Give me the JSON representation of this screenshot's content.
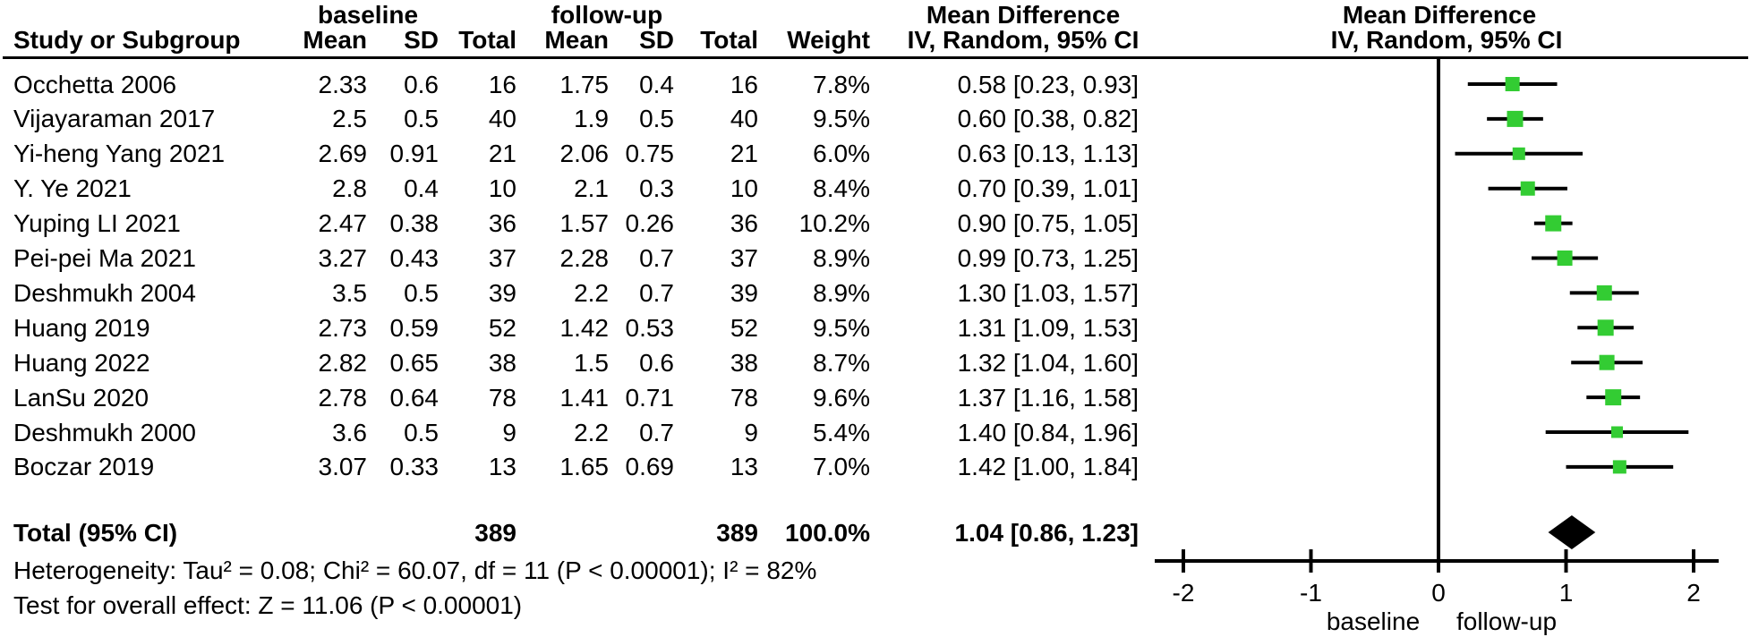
{
  "header": {
    "group1_label": "baseline",
    "group2_label": "follow-up",
    "study_col": "Study or Subgroup",
    "mean_col": "Mean",
    "sd_col": "SD",
    "total_col": "Total",
    "weight_col": "Weight",
    "md_title": "Mean Difference",
    "md_subtitle": "IV, Random, 95% CI"
  },
  "table": {
    "rows": [
      {
        "study": "Occhetta 2006",
        "mean1": "2.33",
        "sd1": "0.6",
        "total1": "16",
        "mean2": "1.75",
        "sd2": "0.4",
        "total2": "16",
        "weight": "7.8%",
        "ci": "0.58 [0.23, 0.93]"
      },
      {
        "study": "Vijayaraman 2017",
        "mean1": "2.5",
        "sd1": "0.5",
        "total1": "40",
        "mean2": "1.9",
        "sd2": "0.5",
        "total2": "40",
        "weight": "9.5%",
        "ci": "0.60 [0.38, 0.82]"
      },
      {
        "study": "Yi-heng Yang 2021",
        "mean1": "2.69",
        "sd1": "0.91",
        "total1": "21",
        "mean2": "2.06",
        "sd2": "0.75",
        "total2": "21",
        "weight": "6.0%",
        "ci": "0.63 [0.13, 1.13]"
      },
      {
        "study": "Y. Ye 2021",
        "mean1": "2.8",
        "sd1": "0.4",
        "total1": "10",
        "mean2": "2.1",
        "sd2": "0.3",
        "total2": "10",
        "weight": "8.4%",
        "ci": "0.70 [0.39, 1.01]"
      },
      {
        "study": "Yuping LI 2021",
        "mean1": "2.47",
        "sd1": "0.38",
        "total1": "36",
        "mean2": "1.57",
        "sd2": "0.26",
        "total2": "36",
        "weight": "10.2%",
        "ci": "0.90 [0.75, 1.05]"
      },
      {
        "study": "Pei-pei Ma 2021",
        "mean1": "3.27",
        "sd1": "0.43",
        "total1": "37",
        "mean2": "2.28",
        "sd2": "0.7",
        "total2": "37",
        "weight": "8.9%",
        "ci": "0.99 [0.73, 1.25]"
      },
      {
        "study": "Deshmukh 2004",
        "mean1": "3.5",
        "sd1": "0.5",
        "total1": "39",
        "mean2": "2.2",
        "sd2": "0.7",
        "total2": "39",
        "weight": "8.9%",
        "ci": "1.30 [1.03, 1.57]"
      },
      {
        "study": "Huang 2019",
        "mean1": "2.73",
        "sd1": "0.59",
        "total1": "52",
        "mean2": "1.42",
        "sd2": "0.53",
        "total2": "52",
        "weight": "9.5%",
        "ci": "1.31 [1.09, 1.53]"
      },
      {
        "study": "Huang 2022",
        "mean1": "2.82",
        "sd1": "0.65",
        "total1": "38",
        "mean2": "1.5",
        "sd2": "0.6",
        "total2": "38",
        "weight": "8.7%",
        "ci": "1.32 [1.04, 1.60]"
      },
      {
        "study": "LanSu 2020",
        "mean1": "2.78",
        "sd1": "0.64",
        "total1": "78",
        "mean2": "1.41",
        "sd2": "0.71",
        "total2": "78",
        "weight": "9.6%",
        "ci": "1.37 [1.16, 1.58]"
      },
      {
        "study": "Deshmukh 2000",
        "mean1": "3.6",
        "sd1": "0.5",
        "total1": "9",
        "mean2": "2.2",
        "sd2": "0.7",
        "total2": "9",
        "weight": "5.4%",
        "ci": "1.40 [0.84, 1.96]"
      },
      {
        "study": "Boczar 2019",
        "mean1": "3.07",
        "sd1": "0.33",
        "total1": "13",
        "mean2": "1.65",
        "sd2": "0.69",
        "total2": "13",
        "weight": "7.0%",
        "ci": "1.42 [1.00, 1.84]"
      }
    ],
    "total_row": {
      "label": "Total (95% CI)",
      "total1": "389",
      "total2": "389",
      "weight": "100.0%",
      "ci": "1.04 [0.86, 1.23]"
    },
    "heterogeneity": "Heterogeneity: Tau² = 0.08; Chi² = 60.07, df = 11 (P < 0.00001); I² = 82%",
    "overall_effect": "Test for overall effect: Z = 11.06 (P < 0.00001)"
  },
  "chart_data": {
    "type": "forest",
    "effect_measure": "Mean Difference",
    "method": "IV, Random, 95% CI",
    "x_ticks": [
      -2,
      -1,
      0,
      1,
      2
    ],
    "xlim": [
      -2.2,
      2.2
    ],
    "zero_line": 0,
    "axis_caption_left": "baseline",
    "axis_caption_right": "follow-up",
    "marker_color": "#33cc33",
    "line_color": "#000000",
    "studies": [
      {
        "name": "Occhetta 2006",
        "md": 0.58,
        "lo": 0.23,
        "hi": 0.93,
        "weight_pct": 7.8
      },
      {
        "name": "Vijayaraman 2017",
        "md": 0.6,
        "lo": 0.38,
        "hi": 0.82,
        "weight_pct": 9.5
      },
      {
        "name": "Yi-heng Yang 2021",
        "md": 0.63,
        "lo": 0.13,
        "hi": 1.13,
        "weight_pct": 6.0
      },
      {
        "name": "Y. Ye 2021",
        "md": 0.7,
        "lo": 0.39,
        "hi": 1.01,
        "weight_pct": 8.4
      },
      {
        "name": "Yuping LI 2021",
        "md": 0.9,
        "lo": 0.75,
        "hi": 1.05,
        "weight_pct": 10.2
      },
      {
        "name": "Pei-pei Ma 2021",
        "md": 0.99,
        "lo": 0.73,
        "hi": 1.25,
        "weight_pct": 8.9
      },
      {
        "name": "Deshmukh 2004",
        "md": 1.3,
        "lo": 1.03,
        "hi": 1.57,
        "weight_pct": 8.9
      },
      {
        "name": "Huang 2019",
        "md": 1.31,
        "lo": 1.09,
        "hi": 1.53,
        "weight_pct": 9.5
      },
      {
        "name": "Huang 2022",
        "md": 1.32,
        "lo": 1.04,
        "hi": 1.6,
        "weight_pct": 8.7
      },
      {
        "name": "LanSu 2020",
        "md": 1.37,
        "lo": 1.16,
        "hi": 1.58,
        "weight_pct": 9.6
      },
      {
        "name": "Deshmukh 2000",
        "md": 1.4,
        "lo": 0.84,
        "hi": 1.96,
        "weight_pct": 5.4
      },
      {
        "name": "Boczar 2019",
        "md": 1.42,
        "lo": 1.0,
        "hi": 1.84,
        "weight_pct": 7.0
      }
    ],
    "total": {
      "label": "Total (95% CI)",
      "md": 1.04,
      "lo": 0.86,
      "hi": 1.23
    }
  }
}
